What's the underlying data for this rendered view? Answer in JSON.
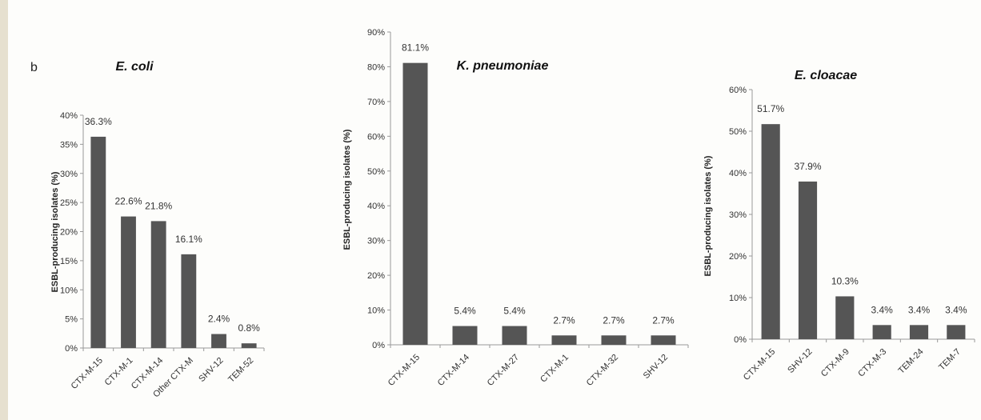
{
  "panel_label": "b",
  "chart_data": [
    {
      "type": "bar",
      "title": "E. coli",
      "xlabel": "",
      "ylabel": "ESBL-producing isolates (%)",
      "categories": [
        "CTX-M-15",
        "CTX-M-1",
        "CTX-M-14",
        "Other CTX-M",
        "SHV-12",
        "TEM-52"
      ],
      "values": [
        36.3,
        22.6,
        21.8,
        16.1,
        2.4,
        0.8
      ],
      "data_labels": [
        "36.3%",
        "22.6%",
        "21.8%",
        "16.1%",
        "2.4%",
        "0.8%"
      ],
      "yticks": [
        "0%",
        "5%",
        "10%",
        "15%",
        "20%",
        "25%",
        "30%",
        "35%",
        "40%"
      ],
      "ylim": [
        0,
        40
      ],
      "grid": false,
      "bar_color": "#555555"
    },
    {
      "type": "bar",
      "title": "K. pneumoniae",
      "xlabel": "",
      "ylabel": "ESBL-producing isolates (%)",
      "categories": [
        "CTX-M-15",
        "CTX-M-14",
        "CTX-M-27",
        "CTX-M-1",
        "CTX-M-32",
        "SHV-12"
      ],
      "values": [
        81.1,
        5.4,
        5.4,
        2.7,
        2.7,
        2.7
      ],
      "data_labels": [
        "81.1%",
        "5.4%",
        "5.4%",
        "2.7%",
        "2.7%",
        "2.7%"
      ],
      "yticks": [
        "0%",
        "10%",
        "20%",
        "30%",
        "40%",
        "50%",
        "60%",
        "70%",
        "80%",
        "90%"
      ],
      "ylim": [
        0,
        90
      ],
      "grid": false,
      "bar_color": "#555555"
    },
    {
      "type": "bar",
      "title": "E. cloacae",
      "xlabel": "",
      "ylabel": "ESBL-producing isolates (%)",
      "categories": [
        "CTX-M-15",
        "SHV-12",
        "CTX-M-9",
        "CTX-M-3",
        "TEM-24",
        "TEM-7"
      ],
      "values": [
        51.7,
        37.9,
        10.3,
        3.4,
        3.4,
        3.4
      ],
      "data_labels": [
        "51.7%",
        "37.9%",
        "10.3%",
        "3.4%",
        "3.4%",
        "3.4%"
      ],
      "yticks": [
        "0%",
        "10%",
        "20%",
        "30%",
        "40%",
        "50%",
        "60%"
      ],
      "ylim": [
        0,
        60
      ],
      "grid": false,
      "bar_color": "#555555"
    }
  ]
}
